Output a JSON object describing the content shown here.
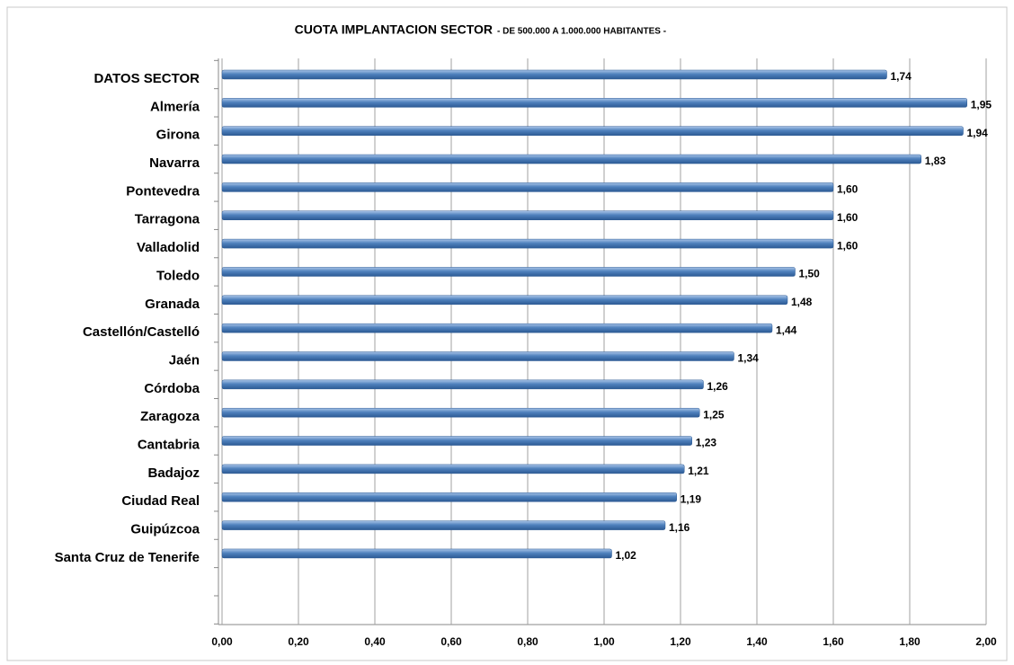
{
  "chart_data": {
    "type": "bar",
    "orientation": "horizontal",
    "title": "CUOTA IMPLANTACION SECTOR",
    "subtitle": "- DE 500.000 A 1.000.000 HABITANTES -",
    "categories": [
      "DATOS SECTOR",
      "Almería",
      "Girona",
      "Navarra",
      "Pontevedra",
      "Tarragona",
      "Valladolid",
      "Toledo",
      "Granada",
      "Castellón/Castelló",
      "Jaén",
      "Córdoba",
      "Zaragoza",
      "Cantabria",
      "Badajoz",
      "Ciudad Real",
      "Guipúzcoa",
      "Santa Cruz de Tenerife"
    ],
    "values": [
      1.74,
      1.95,
      1.94,
      1.83,
      1.6,
      1.6,
      1.6,
      1.5,
      1.48,
      1.44,
      1.34,
      1.26,
      1.25,
      1.23,
      1.21,
      1.19,
      1.16,
      1.02
    ],
    "value_labels": [
      "1,74",
      "1,95",
      "1,94",
      "1,83",
      "1,60",
      "1,60",
      "1,60",
      "1,50",
      "1,48",
      "1,44",
      "1,34",
      "1,26",
      "1,25",
      "1,23",
      "1,21",
      "1,19",
      "1,16",
      "1,02"
    ],
    "color": "#4f81bd",
    "xlim": [
      0,
      2
    ],
    "xticks": [
      {
        "value": 0,
        "label": "0,00"
      },
      {
        "value": 0.2,
        "label": "0,20"
      },
      {
        "value": 0.4,
        "label": "0,40"
      },
      {
        "value": 0.6,
        "label": "0,60"
      },
      {
        "value": 0.8,
        "label": "0,80"
      },
      {
        "value": 1.0,
        "label": "1,00"
      },
      {
        "value": 1.2,
        "label": "1,20"
      },
      {
        "value": 1.4,
        "label": "1,40"
      },
      {
        "value": 1.6,
        "label": "1,60"
      },
      {
        "value": 1.8,
        "label": "1,80"
      },
      {
        "value": 2.0,
        "label": "2,00"
      }
    ],
    "grid": true
  }
}
